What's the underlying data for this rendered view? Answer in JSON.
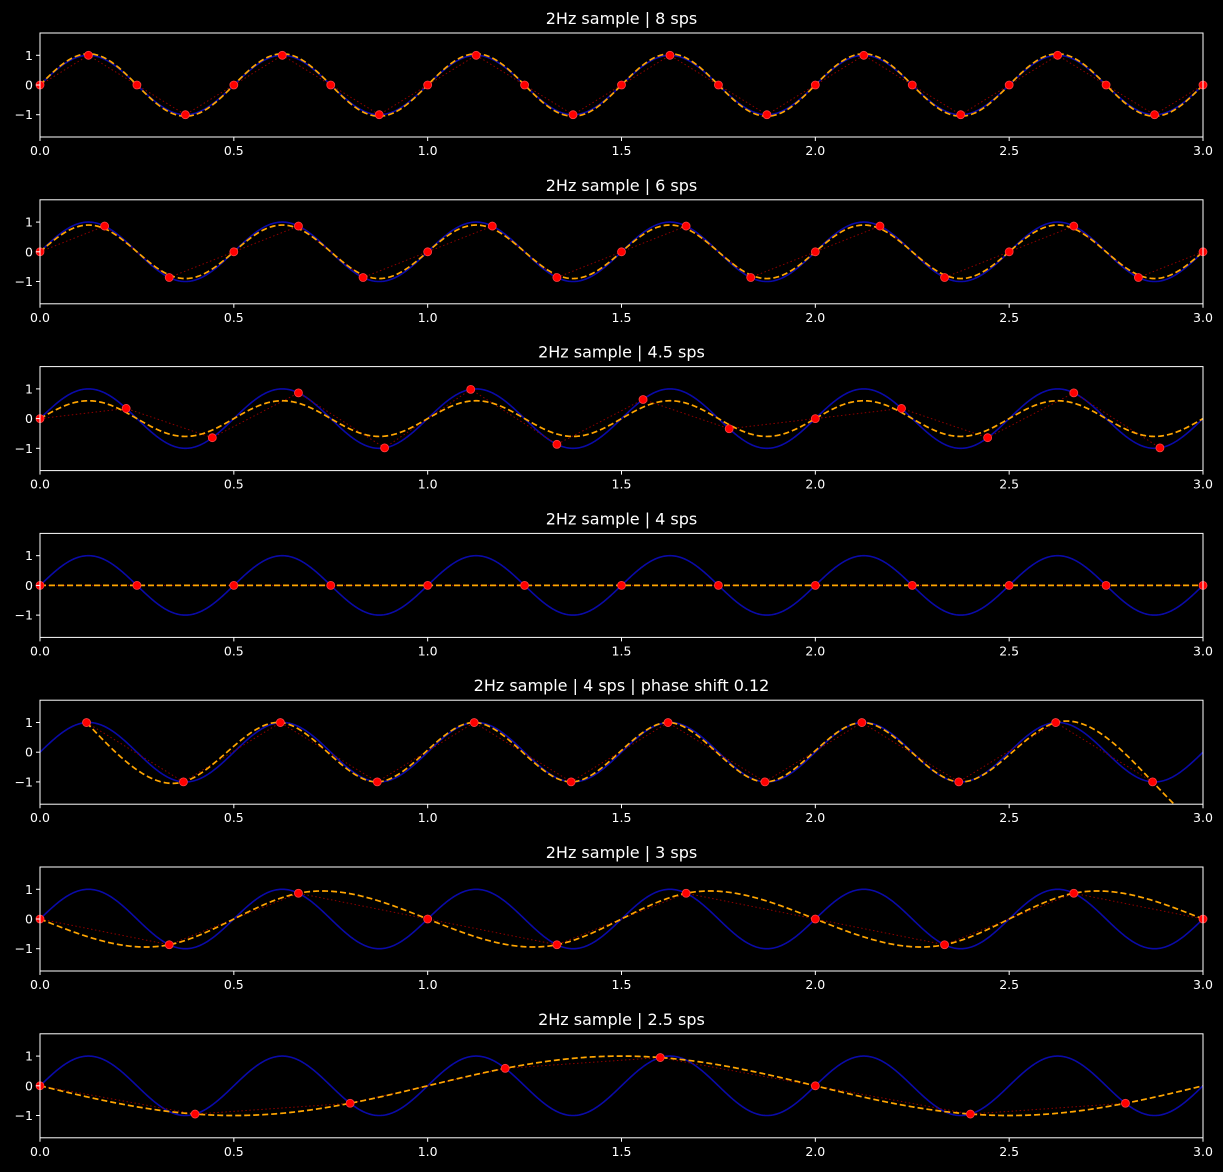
{
  "colors": {
    "background": "#000000",
    "text": "#ffffff",
    "true_signal": "#0a0aa8",
    "reconstruction": "#ffa500",
    "sample_points": "#ff0000",
    "sample_connector": "#8b0000"
  },
  "chart_data": [
    {
      "type": "line",
      "title": "2Hz sample | 8 sps",
      "signal_hz": 2,
      "sample_rate": 8,
      "phase_shift": 0,
      "xlim": [
        0,
        3.0
      ],
      "ylim": [
        -1.75,
        1.75
      ],
      "xticks": [
        0,
        0.5,
        1.0,
        1.5,
        2.0,
        2.5,
        3.0
      ],
      "xtick_labels": [
        "0.0",
        "0.5",
        "1.0",
        "1.5",
        "2.0",
        "2.5",
        "3.0"
      ],
      "yticks": [
        1,
        0,
        -1
      ],
      "ytick_labels": [
        "1",
        "0",
        "−1"
      ],
      "reconstruction": {
        "kind": "sine",
        "amplitude": 1.05,
        "freq_hz": 2.0,
        "phase": 0.0
      }
    },
    {
      "type": "line",
      "title": "2Hz sample | 6 sps",
      "signal_hz": 2,
      "sample_rate": 6,
      "phase_shift": 0,
      "xlim": [
        0,
        3.0
      ],
      "ylim": [
        -1.75,
        1.75
      ],
      "xticks": [
        0,
        0.5,
        1.0,
        1.5,
        2.0,
        2.5,
        3.0
      ],
      "xtick_labels": [
        "0.0",
        "0.5",
        "1.0",
        "1.5",
        "2.0",
        "2.5",
        "3.0"
      ],
      "yticks": [
        1,
        0,
        -1
      ],
      "ytick_labels": [
        "1",
        "0",
        "−1"
      ],
      "reconstruction": {
        "kind": "sine",
        "amplitude": 0.9,
        "freq_hz": 2.0,
        "phase": 0.0
      }
    },
    {
      "type": "line",
      "title": "2Hz sample | 4.5 sps",
      "signal_hz": 2,
      "sample_rate": 4.5,
      "phase_shift": 0,
      "xlim": [
        0,
        3.0
      ],
      "ylim": [
        -1.75,
        1.75
      ],
      "xticks": [
        0,
        0.5,
        1.0,
        1.5,
        2.0,
        2.5,
        3.0
      ],
      "xtick_labels": [
        "0.0",
        "0.5",
        "1.0",
        "1.5",
        "2.0",
        "2.5",
        "3.0"
      ],
      "yticks": [
        1,
        0,
        -1
      ],
      "ytick_labels": [
        "1",
        "0",
        "−1"
      ],
      "reconstruction": {
        "kind": "sine",
        "amplitude": 0.6,
        "freq_hz": 2.0,
        "phase": 0.0
      }
    },
    {
      "type": "line",
      "title": "2Hz sample | 4 sps",
      "signal_hz": 2,
      "sample_rate": 4,
      "phase_shift": 0,
      "xlim": [
        0,
        3.0
      ],
      "ylim": [
        -1.75,
        1.75
      ],
      "xticks": [
        0,
        0.5,
        1.0,
        1.5,
        2.0,
        2.5,
        3.0
      ],
      "xtick_labels": [
        "0.0",
        "0.5",
        "1.0",
        "1.5",
        "2.0",
        "2.5",
        "3.0"
      ],
      "yticks": [
        1,
        0,
        -1
      ],
      "ytick_labels": [
        "1",
        "0",
        "−1"
      ],
      "reconstruction": {
        "kind": "flat",
        "value": 0
      }
    },
    {
      "type": "line",
      "title": "2Hz sample | 4 sps | phase shift 0.12",
      "signal_hz": 2,
      "sample_rate": 4,
      "phase_shift": 0.12,
      "xlim": [
        0,
        3.0
      ],
      "ylim": [
        -1.75,
        1.75
      ],
      "xticks": [
        0,
        0.5,
        1.0,
        1.5,
        2.0,
        2.5,
        3.0
      ],
      "xtick_labels": [
        "0.0",
        "0.5",
        "1.0",
        "1.5",
        "2.0",
        "2.5",
        "3.0"
      ],
      "yticks": [
        1,
        0,
        -1
      ],
      "ytick_labels": [
        "1",
        "0",
        "−1"
      ],
      "reconstruction": {
        "kind": "interp"
      }
    },
    {
      "type": "line",
      "title": "2Hz sample | 3 sps",
      "signal_hz": 2,
      "sample_rate": 3,
      "phase_shift": 0,
      "xlim": [
        0,
        3.0
      ],
      "ylim": [
        -1.75,
        1.75
      ],
      "xticks": [
        0,
        0.5,
        1.0,
        1.5,
        2.0,
        2.5,
        3.0
      ],
      "xtick_labels": [
        "0.0",
        "0.5",
        "1.0",
        "1.5",
        "2.0",
        "2.5",
        "3.0"
      ],
      "yticks": [
        1,
        0,
        -1
      ],
      "ytick_labels": [
        "1",
        "0",
        "−1"
      ],
      "reconstruction": {
        "kind": "interp"
      }
    },
    {
      "type": "line",
      "title": "2Hz sample | 2.5 sps",
      "signal_hz": 2,
      "sample_rate": 2.5,
      "phase_shift": 0,
      "xlim": [
        0,
        3.0
      ],
      "ylim": [
        -1.75,
        1.75
      ],
      "xticks": [
        0,
        0.5,
        1.0,
        1.5,
        2.0,
        2.5,
        3.0
      ],
      "xtick_labels": [
        "0.0",
        "0.5",
        "1.0",
        "1.5",
        "2.0",
        "2.5",
        "3.0"
      ],
      "yticks": [
        1,
        0,
        -1
      ],
      "ytick_labels": [
        "1",
        "0",
        "−1"
      ],
      "reconstruction": {
        "kind": "sine",
        "amplitude": -1.0,
        "freq_hz": 0.5,
        "phase": 0.0
      }
    }
  ]
}
